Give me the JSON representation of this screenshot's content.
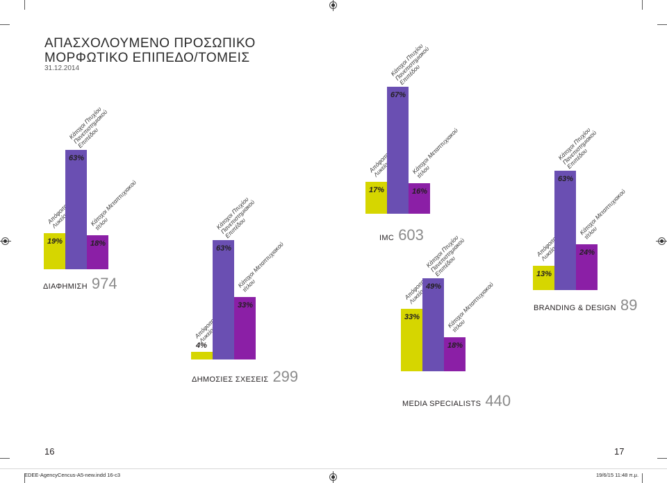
{
  "page": {
    "title_line1": "ΑΠΑΣΧΟΛΟΥΜΕΝΟ ΠΡΟΣΩΠΙΚΟ",
    "title_line2": "ΜΟΡΦΩΤΙΚΟ ΕΠΙΠΕΔΟ/ΤΟΜΕΙΣ",
    "date": "31.12.2014",
    "page_left": "16",
    "page_right": "17",
    "footer_left": "EDEE-AgencyCencus-A5-new.indd   16-c3",
    "footer_right": "19/6/15   11:48 π.μ."
  },
  "colors": {
    "lyceum": "#d6d600",
    "university": "#6a4fb2",
    "postgrad": "#8b1fa6"
  },
  "chart_data": [
    {
      "type": "bar",
      "group": "ΔΙΑΦΗΜΙΣΗ",
      "count": "974",
      "categories": [
        "Απόφοιτοι Λυκείου",
        "Κάτοχοι Πτυχίου Πανεπιστημιακού Επιπέδου",
        "Κάτοχοι Μεταπτυχιακού τίτλου"
      ],
      "values": [
        19,
        63,
        18
      ],
      "labels": [
        "19%",
        "63%",
        "18%"
      ]
    },
    {
      "type": "bar",
      "group": "ΔΗΜΟΣΙΕΣ ΣΧΕΣΕΙΣ",
      "count": "299",
      "categories": [
        "Απόφοιτοι Λυκείου",
        "Κάτοχοι Πτυχίου Πανεπιστημιακού Επιπέδου",
        "Κάτοχοι Μεταπτυχιακού τίτλου"
      ],
      "values": [
        4,
        63,
        33
      ],
      "labels": [
        "4%",
        "63%",
        "33%"
      ]
    },
    {
      "type": "bar",
      "group": "IMC",
      "count": "603",
      "categories": [
        "Απόφοιτοι Λυκείου",
        "Κάτοχοι Πτυχίου Πανεπιστημιακού Επιπέδου",
        "Κάτοχοι Μεταπτυχιακού τίτλου"
      ],
      "values": [
        17,
        67,
        16
      ],
      "labels": [
        "17%",
        "67%",
        "16%"
      ]
    },
    {
      "type": "bar",
      "group": "MEDIA SPECIALISTS",
      "count": "440",
      "categories": [
        "Απόφοιτοι Λυκείου",
        "Κάτοχοι Πτυχίου Πανεπιστημιακού Επιπέδου",
        "Κάτοχοι Μεταπτυχιακού τίτλου"
      ],
      "values": [
        33,
        49,
        18
      ],
      "labels": [
        "33%",
        "49%",
        "18%"
      ]
    },
    {
      "type": "bar",
      "group": "BRANDING & DESIGN",
      "count": "89",
      "categories": [
        "Απόφοιτοι Λυκείου",
        "Κάτοχοι Πτυχίου Πανεπιστημιακού Επιπέδου",
        "Κάτοχοι Μεταπτυχιακού τίτλου"
      ],
      "values": [
        13,
        63,
        24
      ],
      "labels": [
        "13%",
        "63%",
        "24%"
      ]
    }
  ],
  "category_lines": [
    "Απόφοιτοι\nΛυκείου",
    "Κάτοχοι Πτυχίου\nΠανεπιστημιακού\nΕπιπέδου",
    "Κάτοχοι Μεταπτυχιακού\nτίτλου"
  ]
}
